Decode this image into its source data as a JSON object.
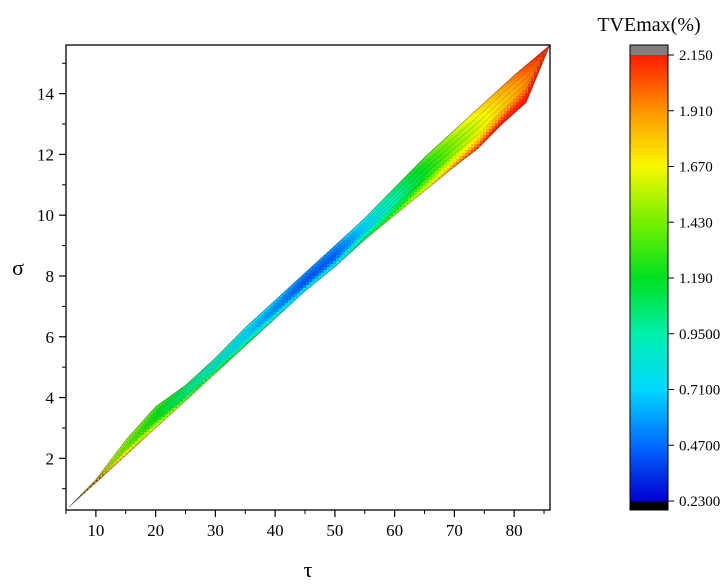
{
  "chart_data": {
    "type": "heatmap",
    "title": "",
    "xlabel": "τ",
    "ylabel": "σ",
    "xlim": [
      5,
      86
    ],
    "ylim": [
      0.3,
      15.6
    ],
    "xticks": [
      10,
      20,
      30,
      40,
      50,
      60,
      70,
      80
    ],
    "yticks": [
      2,
      4,
      6,
      8,
      10,
      12,
      14
    ],
    "colorbar": {
      "label": "TVEmax(%)",
      "min": 0.23,
      "max": 2.15,
      "ticks": [
        "0.2300",
        "0.4700",
        "0.7100",
        "0.9500",
        "1.190",
        "1.430",
        "1.670",
        "1.910",
        "2.150"
      ],
      "over_color": "#808080",
      "under_color": "#000000"
    },
    "region": {
      "upper_edge": [
        [
          5.5,
          0.4
        ],
        [
          10,
          1.3
        ],
        [
          15,
          2.6
        ],
        [
          20,
          3.7
        ],
        [
          25,
          4.4
        ],
        [
          30,
          5.3
        ],
        [
          35,
          6.3
        ],
        [
          40,
          7.2
        ],
        [
          45,
          8.1
        ],
        [
          50,
          9.0
        ],
        [
          55,
          9.9
        ],
        [
          60,
          10.9
        ],
        [
          65,
          11.9
        ],
        [
          70,
          12.8
        ],
        [
          75,
          13.7
        ],
        [
          80,
          14.6
        ],
        [
          86,
          15.6
        ]
      ],
      "lower_edge": [
        [
          86,
          15.6
        ],
        [
          82,
          13.7
        ],
        [
          78,
          13.0
        ],
        [
          74,
          12.2
        ],
        [
          70,
          11.6
        ],
        [
          65,
          10.8
        ],
        [
          60,
          10.0
        ],
        [
          55,
          9.2
        ],
        [
          50,
          8.3
        ],
        [
          45,
          7.5
        ],
        [
          40,
          6.6
        ],
        [
          35,
          5.7
        ],
        [
          30,
          4.8
        ],
        [
          25,
          3.9
        ],
        [
          20,
          3.0
        ],
        [
          15,
          2.1
        ],
        [
          10,
          1.2
        ],
        [
          5.5,
          0.4
        ]
      ]
    },
    "field": {
      "axis_points": [
        {
          "tau": 5.5,
          "value": 1.75
        },
        {
          "tau": 10,
          "value": 1.6
        },
        {
          "tau": 15,
          "value": 1.4
        },
        {
          "tau": 20,
          "value": 1.2
        },
        {
          "tau": 25,
          "value": 1.0
        },
        {
          "tau": 30,
          "value": 0.85
        },
        {
          "tau": 35,
          "value": 0.7
        },
        {
          "tau": 40,
          "value": 0.55
        },
        {
          "tau": 45,
          "value": 0.42
        },
        {
          "tau": 50,
          "value": 0.45
        },
        {
          "tau": 55,
          "value": 0.7
        },
        {
          "tau": 60,
          "value": 0.95
        },
        {
          "tau": 65,
          "value": 1.2
        },
        {
          "tau": 70,
          "value": 1.45
        },
        {
          "tau": 75,
          "value": 1.65
        },
        {
          "tau": 80,
          "value": 1.85
        },
        {
          "tau": 86,
          "value": 2.1
        }
      ],
      "upper_delta": 0.15,
      "lower_delta": 0.55
    }
  }
}
